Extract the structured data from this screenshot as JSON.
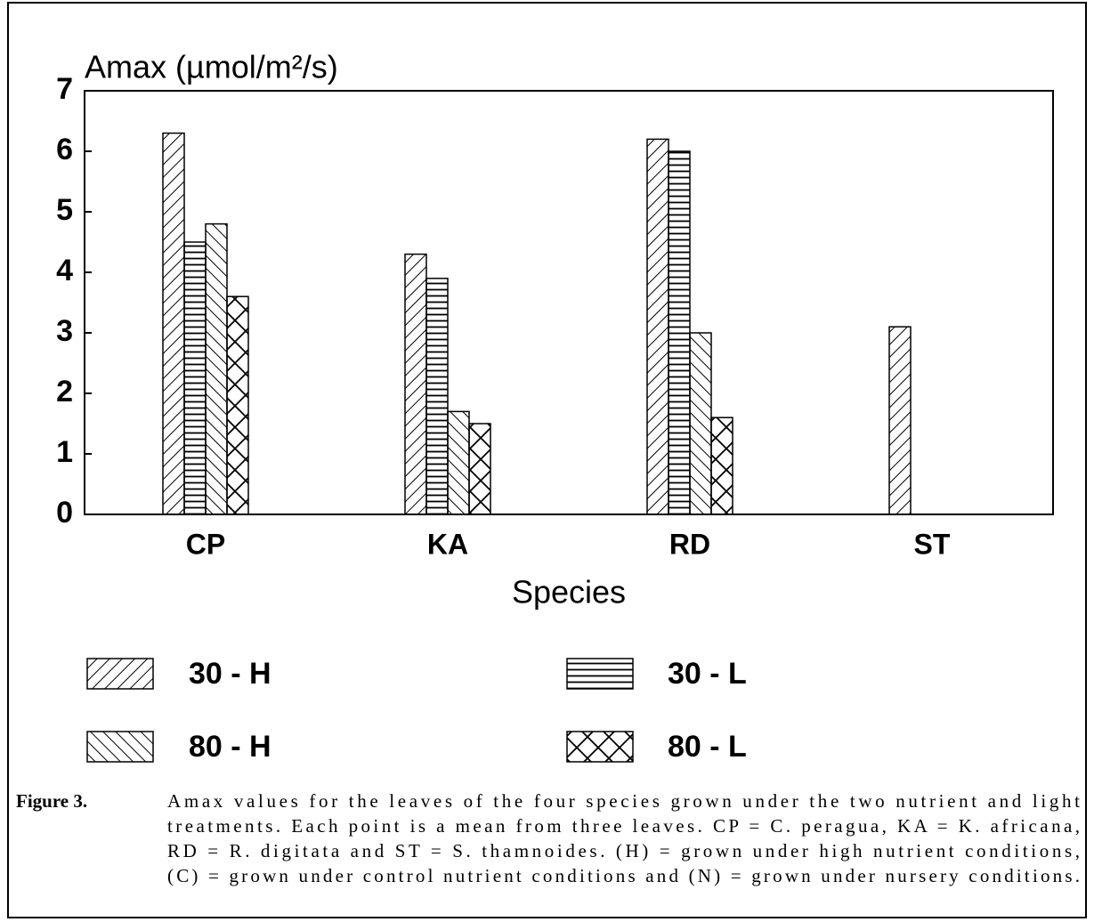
{
  "chart_data": {
    "type": "bar",
    "title": "Amax (µmol/m²/s)",
    "x_label": "Species",
    "categories": [
      "CP",
      "KA",
      "RD",
      "ST"
    ],
    "series": [
      {
        "name": "30 - H",
        "color": "#000000",
        "hatch": "forward",
        "values": [
          6.3,
          4.3,
          6.2,
          3.1
        ]
      },
      {
        "name": "30 - L",
        "color": "#000000",
        "hatch": "horizontal",
        "values": [
          4.5,
          3.9,
          6.0,
          null
        ]
      },
      {
        "name": "80 - H",
        "color": "#000000",
        "hatch": "backward",
        "values": [
          4.8,
          1.7,
          3.0,
          null
        ]
      },
      {
        "name": "80 - L",
        "color": "#000000",
        "hatch": "cross",
        "values": [
          3.6,
          1.5,
          1.6,
          null
        ]
      }
    ],
    "ylim": [
      0,
      7
    ],
    "yticks": [
      0,
      1,
      2,
      3,
      4,
      5,
      6,
      7
    ],
    "grid": false,
    "caption_label": "Figure 3.",
    "caption_lines": [
      "Amax values for the leaves of the four species grown under the two nutrient and light",
      "treatments. Each point is a mean from three leaves. CP = C. peragua, KA = K. africana,",
      "RD = R. digitata and ST = S. thamnoides. (H) = grown under high nutrient conditions,",
      "(C) = grown under control nutrient conditions and (N) = grown under nursery conditions."
    ]
  }
}
